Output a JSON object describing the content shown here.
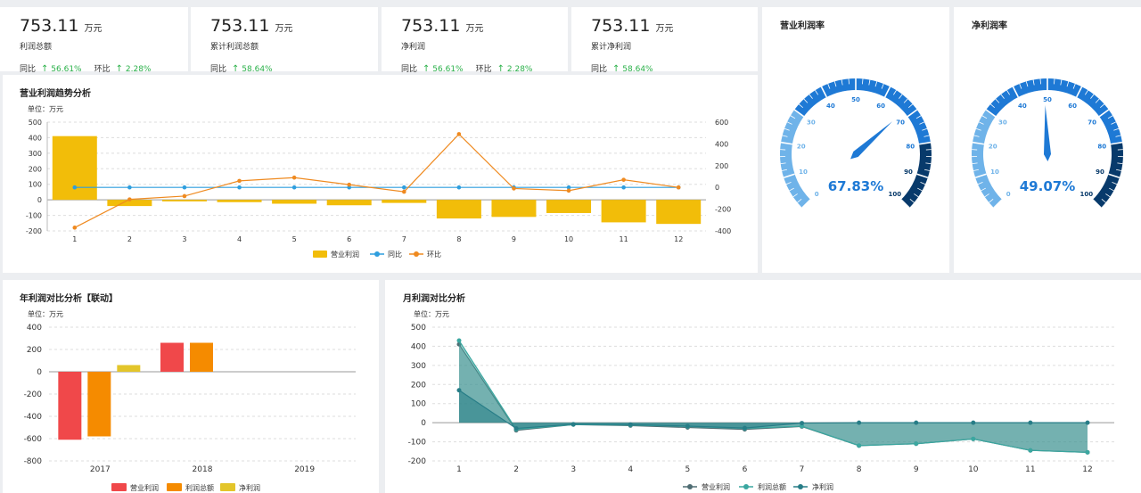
{
  "kpis": [
    {
      "value": "753.11",
      "unit": "万元",
      "name": "利润总额",
      "yoy_label": "同比",
      "yoy": "56.61%",
      "mom_label": "环比",
      "mom": "2.28%"
    },
    {
      "value": "753.11",
      "unit": "万元",
      "name": "累计利润总额",
      "yoy_label": "同比",
      "yoy": "58.64%"
    },
    {
      "value": "753.11",
      "unit": "万元",
      "name": "净利润",
      "yoy_label": "同比",
      "yoy": "56.61%",
      "mom_label": "环比",
      "mom": "2.28%"
    },
    {
      "value": "753.11",
      "unit": "万元",
      "name": "累计净利润",
      "yoy_label": "同比",
      "yoy": "58.64%"
    }
  ],
  "colors": {
    "bar_yellow": "#f2bd09",
    "line_blue": "#2e9ede",
    "line_orange": "#ef8a20",
    "red": "#f0484a",
    "orange": "#f58b00",
    "mustard": "#e3c52a",
    "teal": "#3ba7a0",
    "dark_teal": "#277d87",
    "gauge_light": "#6fb3e9",
    "gauge_mid": "#1e79d5",
    "gauge_dark": "#083a6b",
    "up_green": "#2bb14a"
  },
  "chart_data": [
    {
      "type": "bar",
      "title": "营业利润趋势分析",
      "unit_label": "单位：万元",
      "categories": [
        "1",
        "2",
        "3",
        "4",
        "5",
        "6",
        "7",
        "8",
        "9",
        "10",
        "11",
        "12"
      ],
      "ylim": [
        -200,
        500
      ],
      "y_ticks": [
        500,
        400,
        300,
        200,
        100,
        0,
        -100,
        -200
      ],
      "y2lim": [
        -400,
        600
      ],
      "y2_ticks": [
        600,
        400,
        200,
        0,
        -200,
        -400
      ],
      "series": [
        {
          "name": "营业利润",
          "kind": "bar",
          "axis": "left",
          "values": [
            410,
            -40,
            -10,
            -15,
            -25,
            -35,
            -20,
            -120,
            -110,
            -85,
            -145,
            -155
          ]
        },
        {
          "name": "同比",
          "kind": "line",
          "axis": "right",
          "values": [
            0,
            0,
            0,
            0,
            0,
            0,
            0,
            0,
            0,
            0,
            0,
            0
          ]
        },
        {
          "name": "环比",
          "kind": "line",
          "axis": "right",
          "values": [
            -370,
            -110,
            -80,
            60,
            90,
            25,
            -40,
            490,
            -10,
            -30,
            70,
            0
          ]
        }
      ],
      "legend_position": "bottom",
      "grid": true
    },
    {
      "type": "gauge",
      "title": "营业利润率",
      "value": 67.83,
      "value_label": "67.83%",
      "range": [
        0,
        100
      ],
      "tick_labels": [
        "0",
        "10",
        "20",
        "30",
        "40",
        "50",
        "60",
        "70",
        "80",
        "90",
        "100"
      ]
    },
    {
      "type": "gauge",
      "title": "净利润率",
      "value": 49.07,
      "value_label": "49.07%",
      "range": [
        0,
        100
      ],
      "tick_labels": [
        "0",
        "10",
        "20",
        "30",
        "40",
        "50",
        "60",
        "70",
        "80",
        "90",
        "100"
      ]
    },
    {
      "type": "bar",
      "title": "年利润对比分析【联动】",
      "unit_label": "单位：万元",
      "categories": [
        "2017",
        "2018",
        "2019"
      ],
      "ylim": [
        -800,
        400
      ],
      "y_ticks": [
        400,
        200,
        0,
        -200,
        -400,
        -600,
        -800
      ],
      "series": [
        {
          "name": "营业利润",
          "values": [
            -610,
            260,
            null
          ]
        },
        {
          "name": "利润总额",
          "values": [
            -580,
            260,
            null
          ]
        },
        {
          "name": "净利润",
          "values": [
            60,
            null,
            null
          ]
        }
      ],
      "legend_position": "bottom",
      "grid": true
    },
    {
      "type": "area",
      "title": "月利润对比分析",
      "unit_label": "单位：万元",
      "categories": [
        "1",
        "2",
        "3",
        "4",
        "5",
        "6",
        "7",
        "8",
        "9",
        "10",
        "11",
        "12"
      ],
      "ylim": [
        -200,
        500
      ],
      "y_ticks": [
        500,
        400,
        300,
        200,
        100,
        0,
        -100,
        -200
      ],
      "series": [
        {
          "name": "营业利润",
          "values": [
            410,
            -40,
            -10,
            -15,
            -25,
            -35,
            -20,
            -120,
            -110,
            -85,
            -145,
            -155
          ]
        },
        {
          "name": "利润总额",
          "values": [
            430,
            -35,
            -10,
            -12,
            -20,
            -30,
            -18,
            -120,
            -110,
            -85,
            -145,
            -155
          ]
        },
        {
          "name": "净利润",
          "values": [
            170,
            -30,
            -8,
            -10,
            -18,
            -28,
            -2,
            0,
            0,
            0,
            0,
            0
          ]
        }
      ],
      "legend_position": "bottom",
      "grid": true
    }
  ]
}
